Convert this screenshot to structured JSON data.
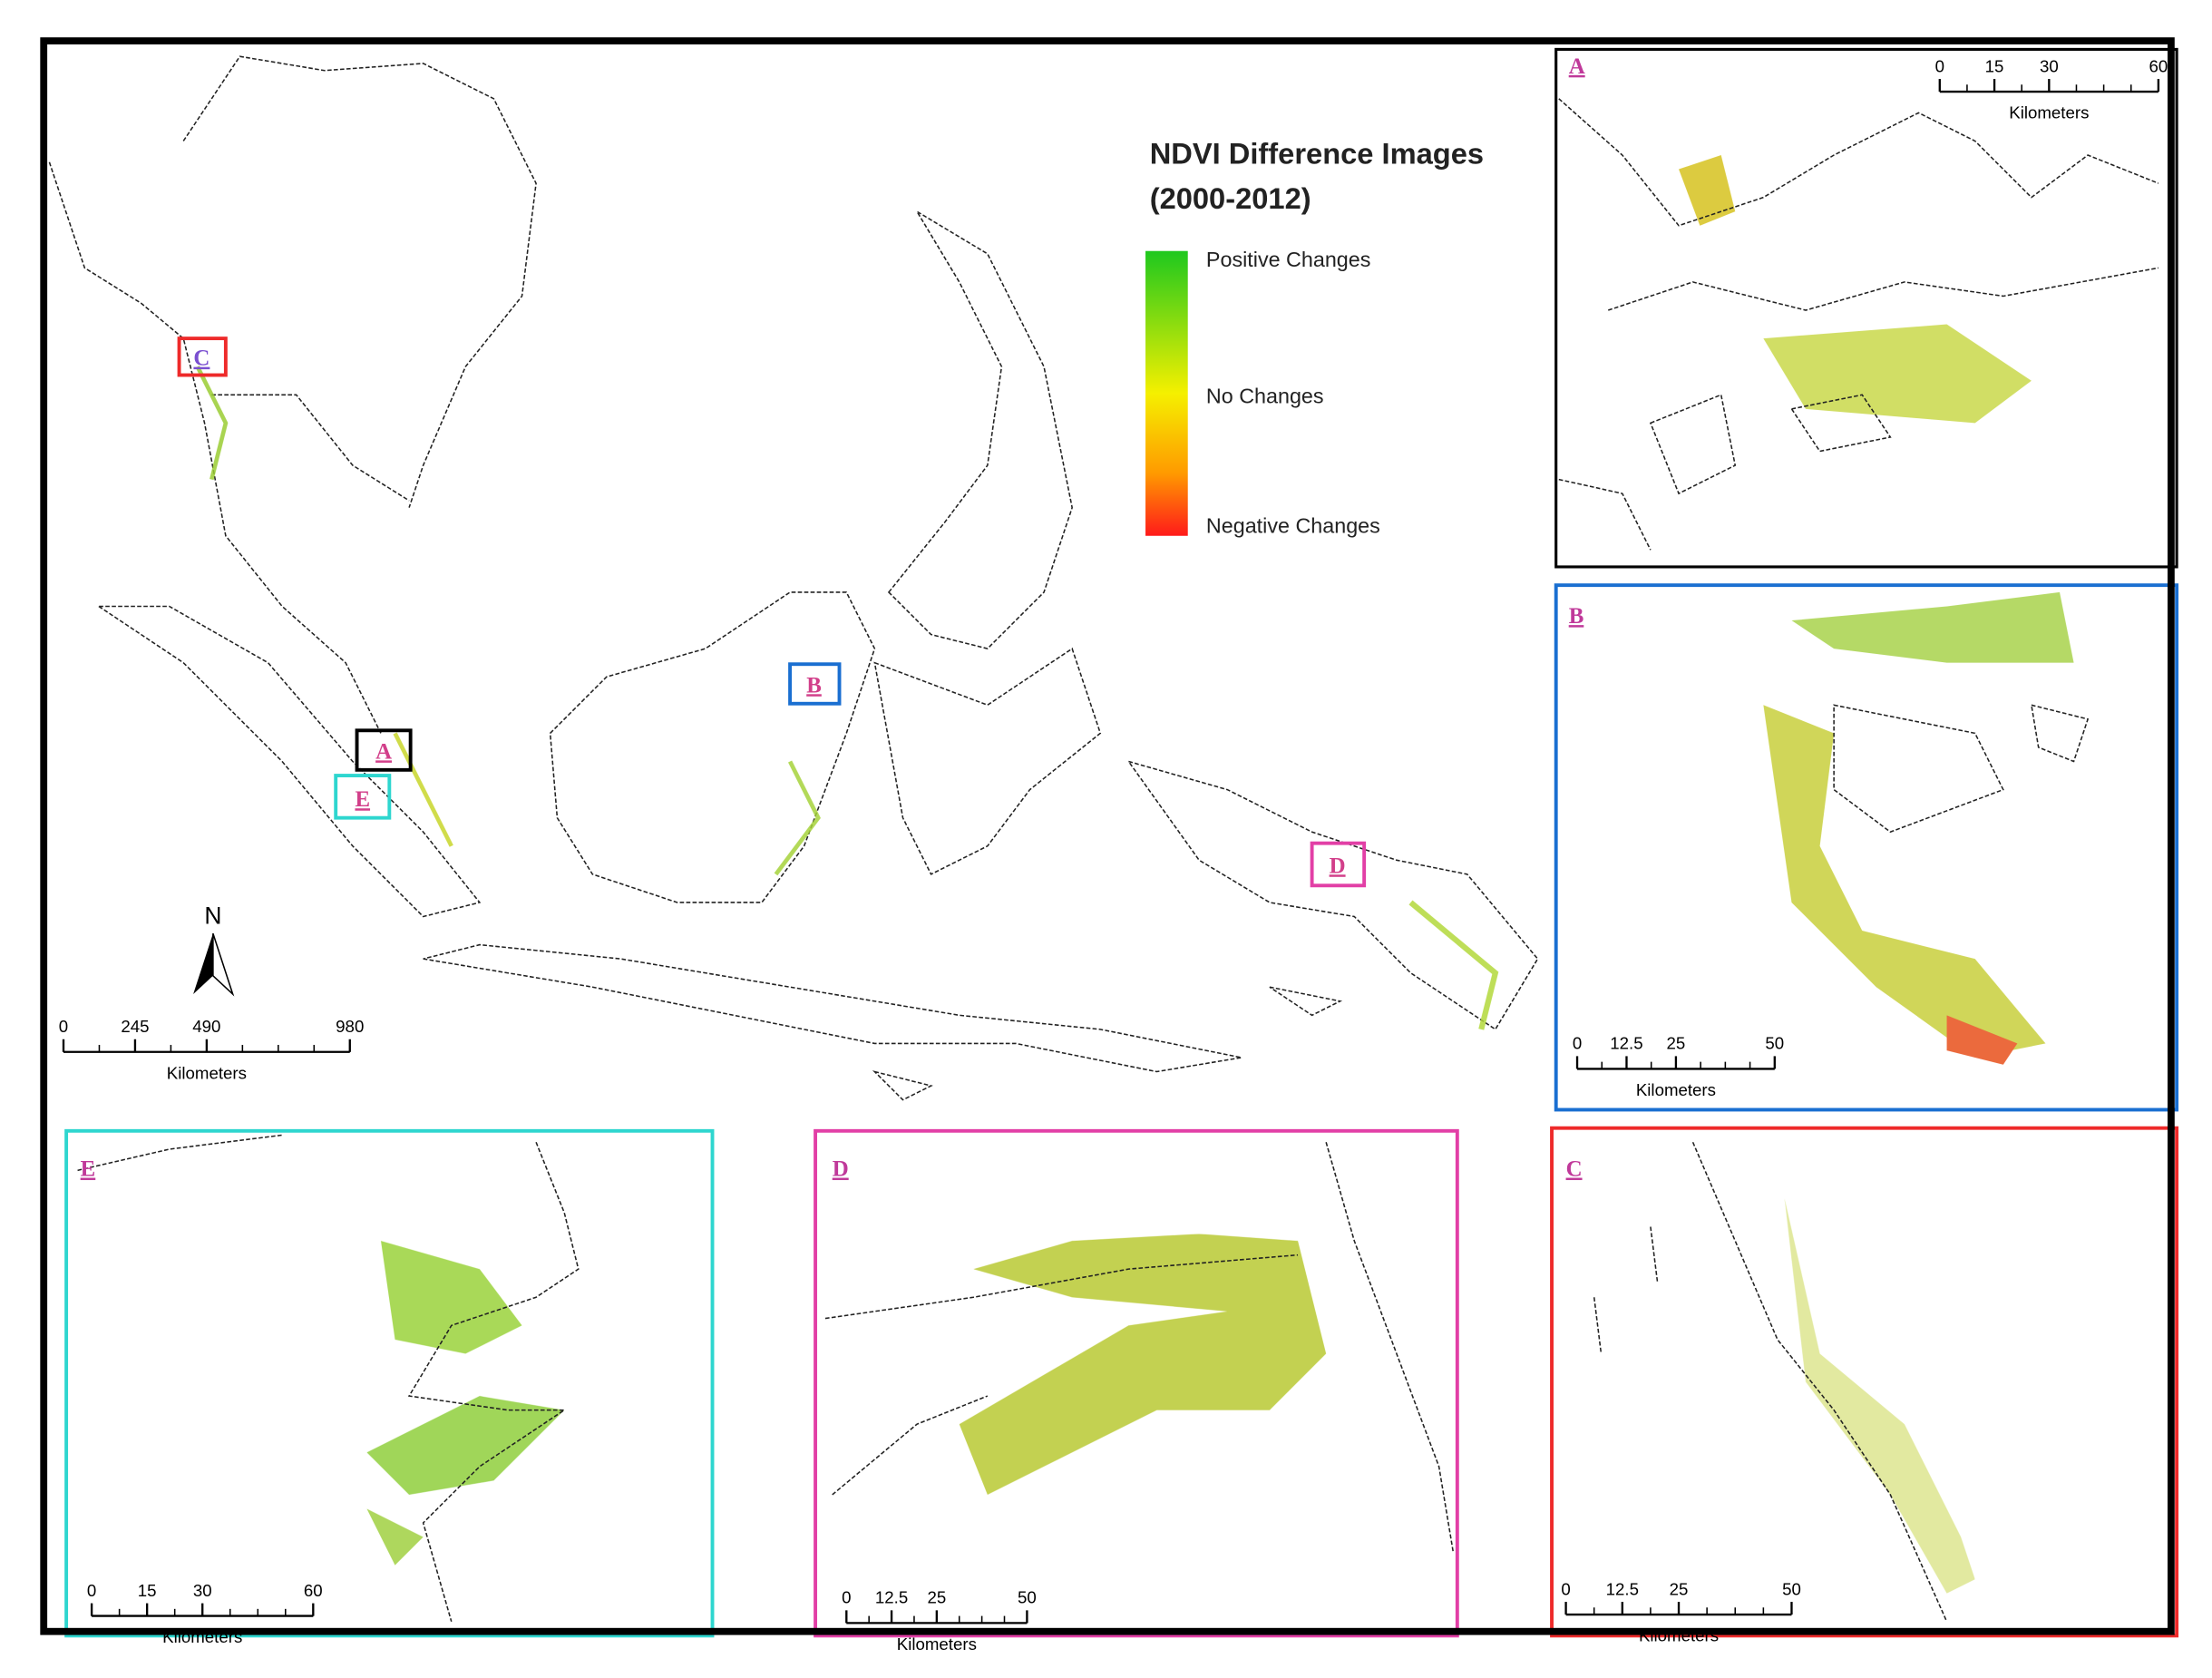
{
  "map": {
    "title": "NDVI Difference Images",
    "subtitle": "(2000-2012)",
    "legend": [
      "Positive Changes",
      "No Changes",
      "Negative Changes"
    ],
    "north": "N",
    "scale": {
      "ticks": [
        0,
        245,
        490,
        980
      ],
      "unit": "Kilometers"
    },
    "locators": [
      "C",
      "B",
      "A",
      "E",
      "D"
    ]
  },
  "insets": [
    {
      "label": "A",
      "scale": [
        0,
        15,
        30,
        60
      ],
      "unit": "Kilometers"
    },
    {
      "label": "B",
      "scale": [
        0,
        12.5,
        25,
        50
      ],
      "unit": "Kilometers"
    },
    {
      "label": "C",
      "scale": [
        0,
        12.5,
        25,
        50
      ],
      "unit": "Kilometers"
    },
    {
      "label": "D",
      "scale": [
        0,
        12.5,
        25,
        50
      ],
      "unit": "Kilometers"
    },
    {
      "label": "E",
      "scale": [
        0,
        15,
        30,
        60
      ],
      "unit": "Kilometers"
    }
  ]
}
